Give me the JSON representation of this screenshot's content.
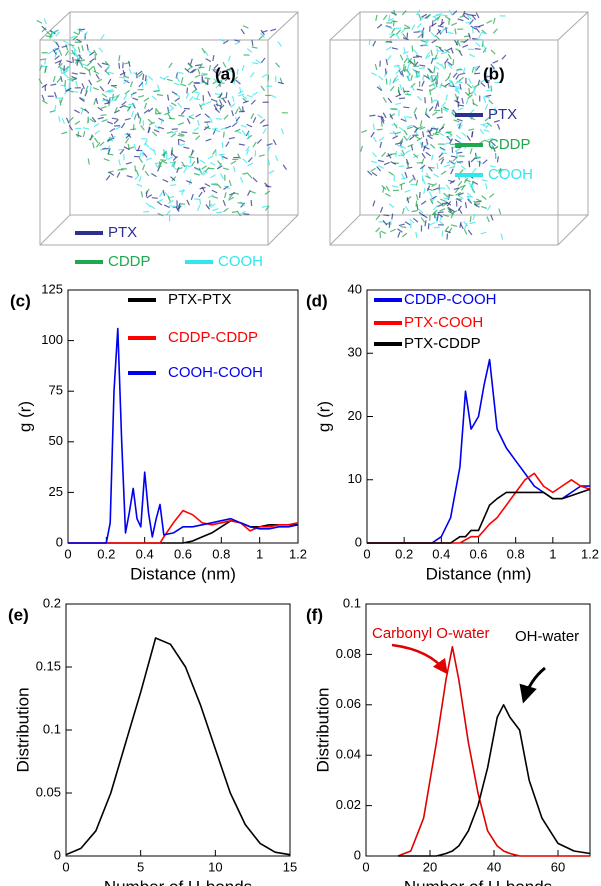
{
  "chart_data": [
    {
      "type": "image",
      "label": "(a)",
      "series": [
        {
          "name": "PTX",
          "color": "#2b2f8f"
        },
        {
          "name": "CDDP",
          "color": "#1fa84f"
        },
        {
          "name": "COOH",
          "color": "#33e6ee"
        }
      ]
    },
    {
      "type": "image",
      "label": "(b)",
      "series": [
        {
          "name": "PTX",
          "color": "#2b2f8f"
        },
        {
          "name": "CDDP",
          "color": "#1fa84f"
        },
        {
          "name": "COOH",
          "color": "#33e6ee"
        }
      ]
    },
    {
      "type": "line",
      "label": "(c)",
      "xlabel": "Distance (nm)",
      "ylabel": "g (r)",
      "xlim": [
        0,
        1.2
      ],
      "xticks": [
        0,
        0.2,
        0.4,
        0.6,
        0.8,
        1,
        1.2
      ],
      "ylim": [
        0,
        125
      ],
      "yticks": [
        0,
        25,
        50,
        75,
        100,
        125
      ],
      "x": [
        0,
        0.2,
        0.22,
        0.24,
        0.26,
        0.28,
        0.3,
        0.32,
        0.34,
        0.36,
        0.38,
        0.4,
        0.42,
        0.44,
        0.46,
        0.48,
        0.5,
        0.55,
        0.6,
        0.65,
        0.7,
        0.75,
        0.8,
        0.85,
        0.9,
        0.95,
        1.0,
        1.05,
        1.1,
        1.15,
        1.2
      ],
      "series": [
        {
          "name": "PTX-PTX",
          "color": "#000000",
          "values": [
            0,
            0,
            0,
            0,
            0,
            0,
            0,
            0,
            0,
            0,
            0,
            0,
            0,
            0,
            0,
            0,
            0,
            0,
            0,
            1,
            3,
            5,
            8,
            11,
            10,
            8,
            8,
            9,
            9,
            9,
            9
          ]
        },
        {
          "name": "CDDP-CDDP",
          "color": "#ff0000",
          "values": [
            0,
            0,
            0,
            0,
            0,
            0,
            0,
            0,
            0,
            0,
            0,
            0,
            0,
            0,
            0,
            0,
            3,
            10,
            16,
            14,
            10,
            9,
            10,
            11,
            10,
            6,
            8,
            8,
            9,
            9,
            10
          ]
        },
        {
          "name": "COOH-COOH",
          "color": "#0000ee",
          "values": [
            0,
            0,
            10,
            75,
            106,
            50,
            5,
            15,
            27,
            12,
            8,
            35,
            15,
            3,
            12,
            19,
            4,
            5,
            8,
            8,
            9,
            10,
            11,
            12,
            10,
            8,
            7,
            7,
            8,
            8,
            9
          ]
        }
      ]
    },
    {
      "type": "line",
      "label": "(d)",
      "xlabel": "Distance (nm)",
      "ylabel": "g (r)",
      "xlim": [
        0,
        1.2
      ],
      "xticks": [
        0,
        0.2,
        0.4,
        0.6,
        0.8,
        1,
        1.2
      ],
      "ylim": [
        0,
        40
      ],
      "yticks": [
        0,
        10,
        20,
        30,
        40
      ],
      "x": [
        0,
        0.35,
        0.4,
        0.45,
        0.5,
        0.53,
        0.56,
        0.6,
        0.63,
        0.66,
        0.7,
        0.75,
        0.8,
        0.85,
        0.9,
        0.95,
        1.0,
        1.05,
        1.1,
        1.15,
        1.2
      ],
      "series": [
        {
          "name": "CDDP-COOH",
          "color": "#0000ee",
          "values": [
            0,
            0,
            1,
            4,
            12,
            24,
            18,
            20,
            25,
            29,
            18,
            15,
            13,
            11,
            9,
            8,
            7,
            7,
            8,
            9,
            9
          ]
        },
        {
          "name": "PTX-COOH",
          "color": "#ff0000",
          "values": [
            0,
            0,
            0,
            0,
            0,
            0.5,
            1,
            1,
            2,
            3,
            4,
            6,
            8,
            10,
            11,
            9,
            8,
            9,
            10,
            9,
            8.5
          ]
        },
        {
          "name": "PTX-CDDP",
          "color": "#000000",
          "values": [
            0,
            0,
            0,
            0,
            1,
            1,
            2,
            2,
            4,
            6,
            7,
            8,
            8,
            8,
            8,
            8,
            7,
            7,
            7.5,
            8,
            8.5
          ]
        }
      ]
    },
    {
      "type": "line",
      "label": "(e)",
      "xlabel": "Number of H-bonds",
      "ylabel": "Distribution",
      "xlim": [
        0,
        15
      ],
      "xticks": [
        0,
        5,
        10,
        15
      ],
      "ylim": [
        0,
        0.2
      ],
      "yticks": [
        0,
        0.05,
        0.1,
        0.15,
        0.2
      ],
      "x": [
        0,
        1,
        2,
        3,
        4,
        5,
        6,
        7,
        8,
        9,
        10,
        11,
        12,
        13,
        14,
        15
      ],
      "series": [
        {
          "color": "#000000",
          "values": [
            0.001,
            0.006,
            0.02,
            0.05,
            0.09,
            0.13,
            0.173,
            0.168,
            0.15,
            0.12,
            0.085,
            0.05,
            0.025,
            0.01,
            0.003,
            0.001
          ]
        }
      ]
    },
    {
      "type": "line",
      "label": "(f)",
      "xlabel": "Number of H-bonds",
      "ylabel": "Distribution",
      "xlim": [
        0,
        70
      ],
      "xticks": [
        0,
        20,
        40,
        60
      ],
      "ylim": [
        0,
        0.1
      ],
      "yticks": [
        0,
        0.02,
        0.04,
        0.06,
        0.08,
        0.1
      ],
      "x": [
        10,
        14,
        18,
        22,
        25,
        27,
        29,
        32,
        35,
        38,
        41,
        43,
        45,
        48,
        51,
        55,
        60,
        65,
        70
      ],
      "series": [
        {
          "name": "Carbonyl O-water",
          "color": "#e00000",
          "values": [
            0,
            0.002,
            0.015,
            0.045,
            0.07,
            0.083,
            0.07,
            0.045,
            0.025,
            0.01,
            0.004,
            0.002,
            0.001,
            0,
            0,
            0,
            0,
            0,
            0
          ]
        },
        {
          "name": "OH-water",
          "color": "#000000",
          "values": [
            0,
            0,
            0,
            0,
            0.001,
            0.002,
            0.004,
            0.01,
            0.02,
            0.035,
            0.055,
            0.06,
            0.055,
            0.05,
            0.03,
            0.015,
            0.005,
            0.002,
            0.001
          ]
        }
      ]
    }
  ]
}
